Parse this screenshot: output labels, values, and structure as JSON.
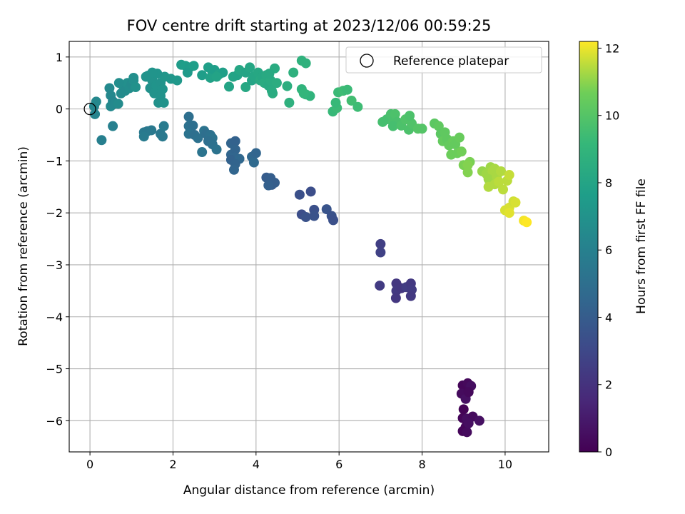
{
  "chart_data": {
    "type": "scatter",
    "title": "FOV centre drift starting at 2023/12/06 00:59:25",
    "xlabel": "Angular distance from reference (arcmin)",
    "ylabel": "Rotation from reference (arcmin)",
    "xlim": [
      -0.5,
      11.05
    ],
    "ylim": [
      -6.6,
      1.3
    ],
    "xticks": [
      0,
      2,
      4,
      6,
      8,
      10
    ],
    "yticks": [
      1,
      0,
      -1,
      -2,
      -3,
      -4,
      -5,
      -6
    ],
    "xtick_labels": [
      "0",
      "2",
      "4",
      "6",
      "8",
      "10"
    ],
    "ytick_labels": [
      "1",
      "0",
      "−1",
      "−2",
      "−3",
      "−4",
      "−5",
      "−6"
    ],
    "grid": true,
    "legend": {
      "label": "Reference platepar",
      "placement": "top-right"
    },
    "reference_point": {
      "x": 0,
      "y": 0
    },
    "colorbar": {
      "label": "Hours from first FF file",
      "min": 0,
      "max": 12.2,
      "ticks": [
        0,
        2,
        4,
        6,
        8,
        10,
        12
      ],
      "tick_labels": [
        "0",
        "2",
        "4",
        "6",
        "8",
        "10",
        "12"
      ],
      "colormap": "viridis"
    },
    "points": [
      {
        "x": 8.98,
        "y": -5.32,
        "t": 0.2
      },
      {
        "x": 9.1,
        "y": -5.28,
        "t": 0.3
      },
      {
        "x": 9.18,
        "y": -5.33,
        "t": 0.5
      },
      {
        "x": 8.95,
        "y": -5.48,
        "t": 0.4
      },
      {
        "x": 9.05,
        "y": -5.58,
        "t": 0.6
      },
      {
        "x": 9.12,
        "y": -5.45,
        "t": 0.3
      },
      {
        "x": 9.0,
        "y": -5.78,
        "t": 0.1
      },
      {
        "x": 8.98,
        "y": -5.95,
        "t": 0.2
      },
      {
        "x": 9.08,
        "y": -5.96,
        "t": 0.5
      },
      {
        "x": 9.22,
        "y": -5.92,
        "t": 0.4
      },
      {
        "x": 9.38,
        "y": -6.0,
        "t": 0.6
      },
      {
        "x": 9.05,
        "y": -6.12,
        "t": 0.3
      },
      {
        "x": 8.98,
        "y": -6.2,
        "t": 0.2
      },
      {
        "x": 9.08,
        "y": -6.22,
        "t": 0.4
      },
      {
        "x": 9.12,
        "y": -6.05,
        "t": 0.5
      },
      {
        "x": 7.0,
        "y": -2.6,
        "t": 2.6
      },
      {
        "x": 7.0,
        "y": -2.76,
        "t": 2.7
      },
      {
        "x": 6.98,
        "y": -3.4,
        "t": 2.4
      },
      {
        "x": 7.38,
        "y": -3.36,
        "t": 2.2
      },
      {
        "x": 7.38,
        "y": -3.5,
        "t": 2.3
      },
      {
        "x": 7.5,
        "y": -3.45,
        "t": 2.2
      },
      {
        "x": 7.62,
        "y": -3.43,
        "t": 2.5
      },
      {
        "x": 7.73,
        "y": -3.36,
        "t": 2.3
      },
      {
        "x": 7.75,
        "y": -3.48,
        "t": 2.4
      },
      {
        "x": 7.73,
        "y": -3.6,
        "t": 2.3
      },
      {
        "x": 7.37,
        "y": -3.64,
        "t": 2.2
      },
      {
        "x": 5.05,
        "y": -1.65,
        "t": 3.4
      },
      {
        "x": 5.32,
        "y": -1.59,
        "t": 3.3
      },
      {
        "x": 5.1,
        "y": -2.03,
        "t": 3.3
      },
      {
        "x": 5.2,
        "y": -2.08,
        "t": 3.5
      },
      {
        "x": 5.4,
        "y": -1.94,
        "t": 3.4
      },
      {
        "x": 5.4,
        "y": -2.06,
        "t": 3.5
      },
      {
        "x": 5.7,
        "y": -1.93,
        "t": 3.6
      },
      {
        "x": 5.82,
        "y": -2.06,
        "t": 3.5
      },
      {
        "x": 5.86,
        "y": -2.14,
        "t": 3.4
      },
      {
        "x": 4.25,
        "y": -1.32,
        "t": 4.0
      },
      {
        "x": 4.35,
        "y": -1.33,
        "t": 4.1
      },
      {
        "x": 4.38,
        "y": -1.46,
        "t": 4.0
      },
      {
        "x": 4.45,
        "y": -1.42,
        "t": 4.1
      },
      {
        "x": 4.3,
        "y": -1.47,
        "t": 4.2
      },
      {
        "x": 3.4,
        "y": -0.66,
        "t": 4.4
      },
      {
        "x": 3.5,
        "y": -0.62,
        "t": 4.3
      },
      {
        "x": 3.4,
        "y": -0.88,
        "t": 4.5
      },
      {
        "x": 3.5,
        "y": -0.78,
        "t": 4.4
      },
      {
        "x": 3.5,
        "y": -0.93,
        "t": 4.5
      },
      {
        "x": 3.4,
        "y": -0.98,
        "t": 4.3
      },
      {
        "x": 3.6,
        "y": -0.96,
        "t": 4.6
      },
      {
        "x": 3.5,
        "y": -1.06,
        "t": 4.4
      },
      {
        "x": 3.47,
        "y": -1.17,
        "t": 4.5
      },
      {
        "x": 3.9,
        "y": -0.92,
        "t": 4.6
      },
      {
        "x": 4.0,
        "y": -0.85,
        "t": 4.5
      },
      {
        "x": 3.95,
        "y": -1.03,
        "t": 4.7
      },
      {
        "x": 2.38,
        "y": -0.15,
        "t": 5.0
      },
      {
        "x": 2.38,
        "y": -0.33,
        "t": 5.1
      },
      {
        "x": 2.48,
        "y": -0.32,
        "t": 5.0
      },
      {
        "x": 2.38,
        "y": -0.48,
        "t": 5.2
      },
      {
        "x": 2.52,
        "y": -0.5,
        "t": 5.0
      },
      {
        "x": 2.6,
        "y": -0.56,
        "t": 5.1
      },
      {
        "x": 2.75,
        "y": -0.42,
        "t": 5.2
      },
      {
        "x": 2.8,
        "y": -0.48,
        "t": 5.0
      },
      {
        "x": 2.9,
        "y": -0.5,
        "t": 5.1
      },
      {
        "x": 2.95,
        "y": -0.56,
        "t": 5.2
      },
      {
        "x": 2.85,
        "y": -0.62,
        "t": 5.0
      },
      {
        "x": 2.7,
        "y": -0.83,
        "t": 5.3
      },
      {
        "x": 2.95,
        "y": -0.68,
        "t": 5.1
      },
      {
        "x": 3.05,
        "y": -0.78,
        "t": 5.2
      },
      {
        "x": 1.3,
        "y": -0.45,
        "t": 5.6
      },
      {
        "x": 1.38,
        "y": -0.43,
        "t": 5.5
      },
      {
        "x": 1.3,
        "y": -0.53,
        "t": 5.7
      },
      {
        "x": 1.48,
        "y": -0.41,
        "t": 5.6
      },
      {
        "x": 1.7,
        "y": -0.48,
        "t": 5.5
      },
      {
        "x": 1.78,
        "y": -0.33,
        "t": 5.7
      },
      {
        "x": 1.75,
        "y": -0.53,
        "t": 5.6
      },
      {
        "x": 0.28,
        "y": -0.6,
        "t": 5.9
      },
      {
        "x": 0.55,
        "y": -0.33,
        "t": 6.0
      },
      {
        "x": 0.1,
        "y": 0.05,
        "t": 6.3
      },
      {
        "x": 0.15,
        "y": 0.14,
        "t": 6.4
      },
      {
        "x": 0.12,
        "y": -0.1,
        "t": 6.2
      },
      {
        "x": 0.47,
        "y": 0.4,
        "t": 6.5
      },
      {
        "x": 0.5,
        "y": 0.26,
        "t": 6.4
      },
      {
        "x": 0.55,
        "y": 0.15,
        "t": 6.3
      },
      {
        "x": 0.5,
        "y": 0.05,
        "t": 6.5
      },
      {
        "x": 0.6,
        "y": 0.1,
        "t": 6.4
      },
      {
        "x": 0.68,
        "y": 0.1,
        "t": 6.6
      },
      {
        "x": 0.75,
        "y": 0.3,
        "t": 6.6
      },
      {
        "x": 0.8,
        "y": 0.45,
        "t": 6.7
      },
      {
        "x": 0.85,
        "y": 0.35,
        "t": 6.6
      },
      {
        "x": 0.9,
        "y": 0.5,
        "t": 6.8
      },
      {
        "x": 0.95,
        "y": 0.4,
        "t": 6.7
      },
      {
        "x": 1.0,
        "y": 0.48,
        "t": 6.6
      },
      {
        "x": 1.05,
        "y": 0.55,
        "t": 6.8
      },
      {
        "x": 1.1,
        "y": 0.42,
        "t": 6.9
      },
      {
        "x": 0.7,
        "y": 0.5,
        "t": 6.7
      },
      {
        "x": 1.05,
        "y": 0.6,
        "t": 6.8
      },
      {
        "x": 1.4,
        "y": 0.64,
        "t": 7.0
      },
      {
        "x": 1.5,
        "y": 0.55,
        "t": 7.0
      },
      {
        "x": 1.45,
        "y": 0.4,
        "t": 6.9
      },
      {
        "x": 1.55,
        "y": 0.3,
        "t": 7.0
      },
      {
        "x": 1.6,
        "y": 0.45,
        "t": 7.1
      },
      {
        "x": 1.7,
        "y": 0.5,
        "t": 7.0
      },
      {
        "x": 1.75,
        "y": 0.38,
        "t": 7.1
      },
      {
        "x": 1.7,
        "y": 0.25,
        "t": 7.0
      },
      {
        "x": 1.65,
        "y": 0.12,
        "t": 6.9
      },
      {
        "x": 1.78,
        "y": 0.12,
        "t": 7.0
      },
      {
        "x": 1.8,
        "y": 0.62,
        "t": 7.2
      },
      {
        "x": 1.62,
        "y": 0.68,
        "t": 7.1
      },
      {
        "x": 1.5,
        "y": 0.7,
        "t": 7.1
      },
      {
        "x": 1.35,
        "y": 0.62,
        "t": 7.0
      },
      {
        "x": 1.95,
        "y": 0.58,
        "t": 7.2
      },
      {
        "x": 2.1,
        "y": 0.55,
        "t": 7.3
      },
      {
        "x": 2.2,
        "y": 0.85,
        "t": 7.5
      },
      {
        "x": 2.3,
        "y": 0.83,
        "t": 7.6
      },
      {
        "x": 2.4,
        "y": 0.8,
        "t": 7.5
      },
      {
        "x": 2.35,
        "y": 0.7,
        "t": 7.4
      },
      {
        "x": 2.5,
        "y": 0.83,
        "t": 7.6
      },
      {
        "x": 2.7,
        "y": 0.65,
        "t": 7.6
      },
      {
        "x": 2.85,
        "y": 0.8,
        "t": 7.7
      },
      {
        "x": 2.95,
        "y": 0.7,
        "t": 7.7
      },
      {
        "x": 2.9,
        "y": 0.6,
        "t": 7.8
      },
      {
        "x": 3.0,
        "y": 0.75,
        "t": 7.6
      },
      {
        "x": 3.1,
        "y": 0.66,
        "t": 7.8
      },
      {
        "x": 3.2,
        "y": 0.7,
        "t": 7.7
      },
      {
        "x": 3.05,
        "y": 0.62,
        "t": 7.9
      },
      {
        "x": 3.35,
        "y": 0.43,
        "t": 8.0
      },
      {
        "x": 3.45,
        "y": 0.62,
        "t": 8.0
      },
      {
        "x": 3.55,
        "y": 0.65,
        "t": 7.9
      },
      {
        "x": 3.6,
        "y": 0.75,
        "t": 8.1
      },
      {
        "x": 3.75,
        "y": 0.7,
        "t": 8.0
      },
      {
        "x": 3.85,
        "y": 0.8,
        "t": 8.1
      },
      {
        "x": 3.75,
        "y": 0.42,
        "t": 8.2
      },
      {
        "x": 3.9,
        "y": 0.55,
        "t": 8.0
      },
      {
        "x": 3.95,
        "y": 0.63,
        "t": 8.1
      },
      {
        "x": 4.05,
        "y": 0.7,
        "t": 8.2
      },
      {
        "x": 4.1,
        "y": 0.55,
        "t": 8.3
      },
      {
        "x": 4.15,
        "y": 0.63,
        "t": 8.2
      },
      {
        "x": 4.2,
        "y": 0.5,
        "t": 8.4
      },
      {
        "x": 4.25,
        "y": 0.65,
        "t": 8.3
      },
      {
        "x": 4.3,
        "y": 0.45,
        "t": 8.3
      },
      {
        "x": 4.35,
        "y": 0.55,
        "t": 8.4
      },
      {
        "x": 4.4,
        "y": 0.3,
        "t": 8.5
      },
      {
        "x": 4.45,
        "y": 0.78,
        "t": 8.4
      },
      {
        "x": 4.5,
        "y": 0.5,
        "t": 8.5
      },
      {
        "x": 4.38,
        "y": 0.35,
        "t": 8.4
      },
      {
        "x": 4.32,
        "y": 0.68,
        "t": 8.3
      },
      {
        "x": 4.75,
        "y": 0.44,
        "t": 8.6
      },
      {
        "x": 4.8,
        "y": 0.12,
        "t": 8.7
      },
      {
        "x": 4.9,
        "y": 0.7,
        "t": 8.7
      },
      {
        "x": 5.1,
        "y": 0.93,
        "t": 8.8
      },
      {
        "x": 5.2,
        "y": 0.88,
        "t": 8.8
      },
      {
        "x": 5.1,
        "y": 0.38,
        "t": 8.9
      },
      {
        "x": 5.2,
        "y": 0.28,
        "t": 9.0
      },
      {
        "x": 5.3,
        "y": 0.25,
        "t": 8.9
      },
      {
        "x": 5.15,
        "y": 0.3,
        "t": 9.0
      },
      {
        "x": 5.85,
        "y": -0.05,
        "t": 9.2
      },
      {
        "x": 5.95,
        "y": 0.02,
        "t": 9.3
      },
      {
        "x": 5.92,
        "y": 0.12,
        "t": 9.2
      },
      {
        "x": 5.98,
        "y": 0.32,
        "t": 9.3
      },
      {
        "x": 6.1,
        "y": 0.35,
        "t": 9.4
      },
      {
        "x": 6.2,
        "y": 0.37,
        "t": 9.3
      },
      {
        "x": 6.3,
        "y": 0.16,
        "t": 9.5
      },
      {
        "x": 6.45,
        "y": 0.04,
        "t": 9.4
      },
      {
        "x": 7.05,
        "y": -0.25,
        "t": 9.6
      },
      {
        "x": 7.15,
        "y": -0.2,
        "t": 9.6
      },
      {
        "x": 7.25,
        "y": -0.1,
        "t": 9.7
      },
      {
        "x": 7.3,
        "y": -0.25,
        "t": 9.7
      },
      {
        "x": 7.35,
        "y": -0.1,
        "t": 9.8
      },
      {
        "x": 7.4,
        "y": -0.25,
        "t": 9.7
      },
      {
        "x": 7.3,
        "y": -0.33,
        "t": 9.6
      },
      {
        "x": 7.5,
        "y": -0.32,
        "t": 9.8
      },
      {
        "x": 7.6,
        "y": -0.2,
        "t": 9.9
      },
      {
        "x": 7.68,
        "y": -0.4,
        "t": 9.8
      },
      {
        "x": 7.75,
        "y": -0.28,
        "t": 9.9
      },
      {
        "x": 7.7,
        "y": -0.13,
        "t": 9.8
      },
      {
        "x": 7.9,
        "y": -0.38,
        "t": 10.0
      },
      {
        "x": 8.0,
        "y": -0.38,
        "t": 10.0
      },
      {
        "x": 8.3,
        "y": -0.28,
        "t": 10.2
      },
      {
        "x": 8.4,
        "y": -0.33,
        "t": 10.3
      },
      {
        "x": 8.45,
        "y": -0.48,
        "t": 10.2
      },
      {
        "x": 8.55,
        "y": -0.45,
        "t": 10.3
      },
      {
        "x": 8.5,
        "y": -0.62,
        "t": 10.4
      },
      {
        "x": 8.6,
        "y": -0.58,
        "t": 10.3
      },
      {
        "x": 8.65,
        "y": -0.7,
        "t": 10.4
      },
      {
        "x": 8.75,
        "y": -0.62,
        "t": 10.5
      },
      {
        "x": 8.8,
        "y": -0.68,
        "t": 10.4
      },
      {
        "x": 8.9,
        "y": -0.55,
        "t": 10.5
      },
      {
        "x": 8.7,
        "y": -0.88,
        "t": 10.6
      },
      {
        "x": 8.85,
        "y": -0.85,
        "t": 10.6
      },
      {
        "x": 8.95,
        "y": -0.82,
        "t": 10.7
      },
      {
        "x": 9.0,
        "y": -1.08,
        "t": 10.8
      },
      {
        "x": 9.15,
        "y": -1.02,
        "t": 10.8
      },
      {
        "x": 9.1,
        "y": -1.08,
        "t": 10.9
      },
      {
        "x": 9.1,
        "y": -1.22,
        "t": 10.9
      },
      {
        "x": 9.45,
        "y": -1.2,
        "t": 11.1
      },
      {
        "x": 9.55,
        "y": -1.25,
        "t": 11.2
      },
      {
        "x": 9.65,
        "y": -1.12,
        "t": 11.2
      },
      {
        "x": 9.7,
        "y": -1.2,
        "t": 11.3
      },
      {
        "x": 9.6,
        "y": -1.35,
        "t": 11.2
      },
      {
        "x": 9.75,
        "y": -1.15,
        "t": 11.3
      },
      {
        "x": 9.8,
        "y": -1.3,
        "t": 11.3
      },
      {
        "x": 9.6,
        "y": -1.5,
        "t": 11.4
      },
      {
        "x": 9.75,
        "y": -1.45,
        "t": 11.4
      },
      {
        "x": 9.85,
        "y": -1.4,
        "t": 11.5
      },
      {
        "x": 9.9,
        "y": -1.2,
        "t": 11.4
      },
      {
        "x": 9.95,
        "y": -1.55,
        "t": 11.5
      },
      {
        "x": 10.05,
        "y": -1.38,
        "t": 11.5
      },
      {
        "x": 10.1,
        "y": -1.27,
        "t": 11.6
      },
      {
        "x": 10.0,
        "y": -1.95,
        "t": 11.8
      },
      {
        "x": 10.1,
        "y": -1.9,
        "t": 11.8
      },
      {
        "x": 10.1,
        "y": -2.0,
        "t": 11.9
      },
      {
        "x": 10.2,
        "y": -1.78,
        "t": 11.7
      },
      {
        "x": 10.25,
        "y": -1.8,
        "t": 11.8
      },
      {
        "x": 10.45,
        "y": -2.15,
        "t": 12.1
      },
      {
        "x": 10.52,
        "y": -2.18,
        "t": 12.2
      }
    ]
  }
}
